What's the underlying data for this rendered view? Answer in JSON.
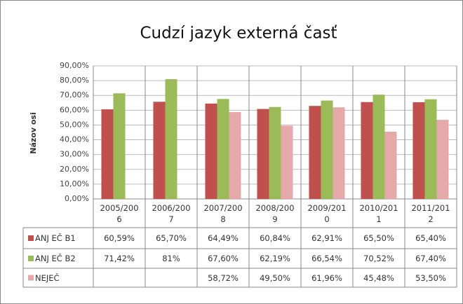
{
  "chart_data": {
    "type": "bar",
    "title": "Cudzí jazyk externá časť",
    "ylabel": "Názov osi",
    "categories": [
      "2005/2006",
      "2006/2007",
      "2007/2008",
      "2008/2009",
      "2009/2010",
      "2010/2011",
      "2011/2012"
    ],
    "series": [
      {
        "name": "ANJ EČ B1",
        "color": "#c0504d",
        "values": [
          60.59,
          65.7,
          64.49,
          60.84,
          62.91,
          65.5,
          65.4
        ],
        "value_labels": [
          "60,59%",
          "65,70%",
          "64,49%",
          "60,84%",
          "62,91%",
          "65,50%",
          "65,40%"
        ]
      },
      {
        "name": "ANJ EČ B2",
        "color": "#9bbb59",
        "values": [
          71.42,
          81,
          67.6,
          62.19,
          66.54,
          70.52,
          67.4
        ],
        "value_labels": [
          "71,42%",
          "81%",
          "67,60%",
          "62,19%",
          "66,54%",
          "70,52%",
          "67,40%"
        ]
      },
      {
        "name": "NEJEČ",
        "color": "#e6a9a9",
        "values": [
          null,
          null,
          58.72,
          49.5,
          61.96,
          45.48,
          53.5
        ],
        "value_labels": [
          null,
          null,
          "58,72%",
          "49,50%",
          "61,96%",
          "45,48%",
          "53,50%"
        ]
      }
    ],
    "ylim": [
      0,
      90
    ],
    "yticks": [
      {
        "value": 0,
        "label": "0,00%"
      },
      {
        "value": 10,
        "label": "10,00%"
      },
      {
        "value": 20,
        "label": "20,00%"
      },
      {
        "value": 30,
        "label": "30,00%"
      },
      {
        "value": 40,
        "label": "40,00%"
      },
      {
        "value": 50,
        "label": "50,00%"
      },
      {
        "value": 60,
        "label": "60,00%"
      },
      {
        "value": 70,
        "label": "70,00%"
      },
      {
        "value": 80,
        "label": "80,00%"
      },
      {
        "value": 90,
        "label": "90,00%"
      }
    ],
    "grid": true
  }
}
